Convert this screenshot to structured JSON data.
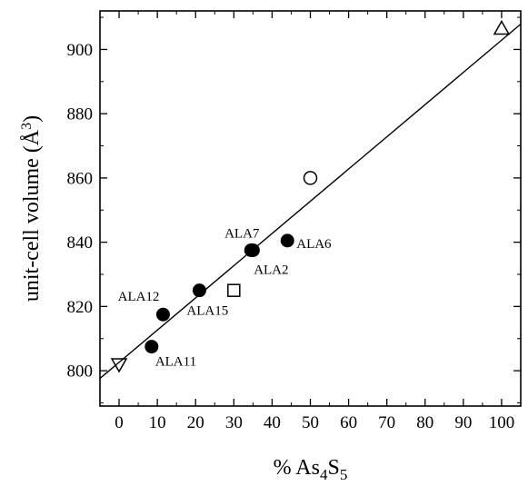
{
  "chart_data": {
    "type": "scatter",
    "title": "",
    "xlabel": {
      "prefix": "% As",
      "sub1": "4",
      "mid": "S",
      "sub2": "5"
    },
    "ylabel": {
      "main": "unit-cell volume (",
      "unit": "Å",
      "sup": "3",
      "close": ")"
    },
    "xlim": [
      -5,
      105
    ],
    "ylim": [
      789,
      912
    ],
    "xticks": [
      0,
      10,
      20,
      30,
      40,
      50,
      60,
      70,
      80,
      90,
      100
    ],
    "yticks": [
      800,
      820,
      840,
      860,
      880,
      900
    ],
    "grid": false,
    "series": [
      {
        "marker": "filled-circle",
        "points": [
          {
            "x": 8.5,
            "y": 807.5,
            "label": "ALA11"
          },
          {
            "x": 11.5,
            "y": 817.5,
            "label": "ALA12"
          },
          {
            "x": 21,
            "y": 825,
            "label": "ALA15"
          },
          {
            "x": 34.5,
            "y": 837.5,
            "label": "ALA7"
          },
          {
            "x": 35,
            "y": 837.5,
            "label": "ALA2"
          },
          {
            "x": 44,
            "y": 840.5,
            "label": "ALA6"
          }
        ]
      },
      {
        "marker": "down-triangle",
        "points": [
          {
            "x": 0,
            "y": 802
          }
        ]
      },
      {
        "marker": "square",
        "points": [
          {
            "x": 30,
            "y": 825
          }
        ]
      },
      {
        "marker": "open-circle",
        "points": [
          {
            "x": 50,
            "y": 860
          }
        ]
      },
      {
        "marker": "up-triangle",
        "points": [
          {
            "x": 100,
            "y": 906.5
          }
        ]
      }
    ],
    "fit_line": {
      "x": [
        -5,
        105
      ],
      "y": [
        797.6,
        907.9
      ]
    }
  }
}
